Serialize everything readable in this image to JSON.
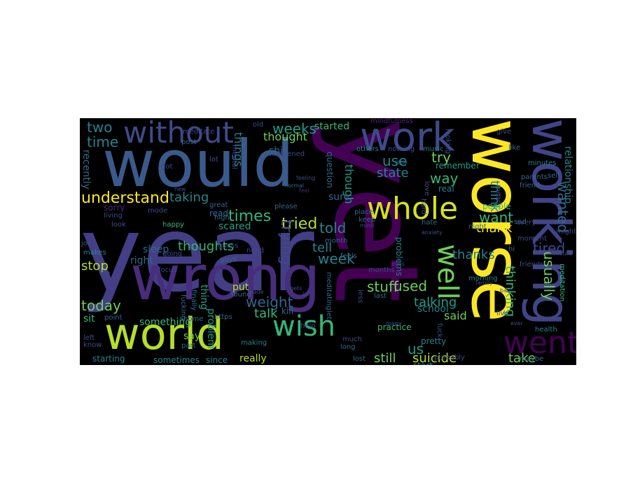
{
  "word_cloud": {
    "background": "#000000",
    "palette": [
      "#440154",
      "#482878",
      "#3e4a89",
      "#31688e",
      "#26828e",
      "#1f9e89",
      "#35b779",
      "#6ece58",
      "#b5de2b",
      "#fde725"
    ],
    "words": [
      {
        "text": "year",
        "color": "#433e85"
      },
      {
        "text": "yet",
        "color": "#440154"
      },
      {
        "text": "would",
        "color": "#3b5a8c"
      },
      {
        "text": "worse",
        "color": "#fde725"
      },
      {
        "text": "wrong",
        "color": "#472d7b"
      },
      {
        "text": "working",
        "color": "#414487"
      },
      {
        "text": "world",
        "color": "#b5de2b"
      },
      {
        "text": "work",
        "color": "#3e4a89"
      },
      {
        "text": "without",
        "color": "#3e4a89"
      },
      {
        "text": "whole",
        "color": "#d8e219"
      },
      {
        "text": "went",
        "color": "#440154"
      },
      {
        "text": "wish",
        "color": "#35b779"
      },
      {
        "text": "well",
        "color": "#6ece58"
      },
      {
        "text": "two",
        "color": "#26828e"
      },
      {
        "text": "time",
        "color": "#26828e"
      },
      {
        "text": "weeks",
        "color": "#1f9e89"
      },
      {
        "text": "thought",
        "color": "#6ece58"
      },
      {
        "text": "understand",
        "color": "#fde725"
      },
      {
        "text": "taking",
        "color": "#26828e"
      },
      {
        "text": "times",
        "color": "#35b779"
      },
      {
        "text": "tried",
        "color": "#b5de2b"
      },
      {
        "text": "trying",
        "color": "#3e4a89"
      },
      {
        "text": "told",
        "color": "#26828e"
      },
      {
        "text": "tell",
        "color": "#26828e"
      },
      {
        "text": "thoughts",
        "color": "#35b779"
      },
      {
        "text": "stop",
        "color": "#b5de2b"
      },
      {
        "text": "today",
        "color": "#6ece58"
      },
      {
        "text": "weight",
        "color": "#31688e"
      },
      {
        "text": "talk",
        "color": "#35b779"
      },
      {
        "text": "week",
        "color": "#26828e"
      },
      {
        "text": "stuff",
        "color": "#6ece58"
      },
      {
        "text": "used",
        "color": "#6ece58"
      },
      {
        "text": "us",
        "color": "#1f9e89"
      },
      {
        "text": "still",
        "color": "#6ece58"
      },
      {
        "text": "suicide",
        "color": "#b5de2b"
      },
      {
        "text": "take",
        "color": "#6ece58"
      },
      {
        "text": "try",
        "color": "#6ece58"
      },
      {
        "text": "use",
        "color": "#26828e"
      },
      {
        "text": "state",
        "color": "#26828e"
      },
      {
        "text": "way",
        "color": "#35b779"
      },
      {
        "text": "want",
        "color": "#35b779"
      },
      {
        "text": "thank",
        "color": "#fde725"
      },
      {
        "text": "thanks",
        "color": "#26828e"
      },
      {
        "text": "talking",
        "color": "#1f9e89"
      },
      {
        "text": "said",
        "color": "#6ece58"
      },
      {
        "text": "school",
        "color": "#26828e"
      },
      {
        "text": "usually",
        "color": "#6ece58"
      },
      {
        "text": "thinking",
        "color": "#35b779"
      },
      {
        "text": "think",
        "color": "#26828e"
      },
      {
        "text": "wanted",
        "color": "#31688e"
      },
      {
        "text": "tired",
        "color": "#3e4a89"
      },
      {
        "text": "relationship",
        "color": "#26828e"
      },
      {
        "text": "things",
        "color": "#26828e"
      },
      {
        "text": "though",
        "color": "#1f9e89"
      },
      {
        "text": "started",
        "color": "#35b779"
      },
      {
        "text": "something",
        "color": "#35b779"
      },
      {
        "text": "sometimes",
        "color": "#26828e"
      },
      {
        "text": "since",
        "color": "#26828e"
      },
      {
        "text": "really",
        "color": "#b5de2b"
      },
      {
        "text": "starting",
        "color": "#26828e"
      },
      {
        "text": "sit",
        "color": "#35b779"
      },
      {
        "text": "right",
        "color": "#31688e"
      },
      {
        "text": "sleep",
        "color": "#31688e"
      },
      {
        "text": "scared",
        "color": "#1f9e89"
      },
      {
        "text": "read",
        "color": "#31688e"
      },
      {
        "text": "sure",
        "color": "#31688e"
      },
      {
        "text": "thing",
        "color": "#1f9e89"
      },
      {
        "text": "problem",
        "color": "#1f9e89"
      },
      {
        "text": "put",
        "color": "#b5de2b"
      },
      {
        "text": "say",
        "color": "#6ece58"
      },
      {
        "text": "problems",
        "color": "#26828e"
      },
      {
        "text": "pretty",
        "color": "#26828e"
      },
      {
        "text": "start",
        "color": "#26828e"
      },
      {
        "text": "real",
        "color": "#26828e"
      },
      {
        "text": "remember",
        "color": "#1f9e89"
      },
      {
        "text": "practice",
        "color": "#35b779"
      },
      {
        "text": "recently",
        "color": "#31688e"
      },
      {
        "text": "shit",
        "color": "#31688e"
      },
      {
        "text": "question",
        "color": "#31688e"
      },
      {
        "text": "sorry",
        "color": "#482878"
      },
      {
        "text": "mindfulness",
        "color": "#482878"
      },
      {
        "text": "people",
        "color": "#35b779"
      },
      {
        "text": "morning",
        "color": "#26828e"
      },
      {
        "text": "minutes",
        "color": "#26828e"
      },
      {
        "text": "parents",
        "color": "#31688e"
      },
      {
        "text": "maybe",
        "color": "#31688e"
      },
      {
        "text": "health",
        "color": "#26828e"
      },
      {
        "text": "meditation",
        "color": "#35b779"
      },
      {
        "text": "probably",
        "color": "#3e4a89"
      },
      {
        "text": "lost",
        "color": "#31688e"
      },
      {
        "text": "last",
        "color": "#31688e"
      },
      {
        "text": "kill",
        "color": "#31688e"
      },
      {
        "text": "found",
        "color": "#31688e"
      },
      {
        "text": "happy",
        "color": "#35b779"
      },
      {
        "text": "finally",
        "color": "#31688e"
      },
      {
        "text": "fucking",
        "color": "#31688e"
      },
      {
        "text": "feel",
        "color": "#482878"
      },
      {
        "text": "please",
        "color": "#31688e"
      },
      {
        "text": "place",
        "color": "#31688e"
      },
      {
        "text": "point",
        "color": "#31688e"
      },
      {
        "text": "part",
        "color": "#31688e"
      },
      {
        "text": "making",
        "color": "#26828e"
      },
      {
        "text": "makes",
        "color": "#26828e"
      },
      {
        "text": "post",
        "color": "#31688e"
      },
      {
        "text": "others",
        "color": "#26828e"
      },
      {
        "text": "nothing",
        "color": "#3e4a89"
      },
      {
        "text": "music",
        "color": "#26828e"
      },
      {
        "text": "little",
        "color": "#31688e"
      },
      {
        "text": "like",
        "color": "#31688e"
      },
      {
        "text": "friend",
        "color": "#31688e"
      },
      {
        "text": "sad",
        "color": "#31688e"
      },
      {
        "text": "self",
        "color": "#31688e"
      },
      {
        "text": "night",
        "color": "#31688e"
      },
      {
        "text": "mental",
        "color": "#3e4a89"
      },
      {
        "text": "high",
        "color": "#31688e"
      },
      {
        "text": "month",
        "color": "#31688e"
      },
      {
        "text": "keep",
        "color": "#31688e"
      },
      {
        "text": "hate",
        "color": "#31688e"
      },
      {
        "text": "meditating",
        "color": "#31688e"
      },
      {
        "text": "long",
        "color": "#31688e"
      },
      {
        "text": "https",
        "color": "#31688e"
      },
      {
        "text": "hi",
        "color": "#31688e"
      },
      {
        "text": "know",
        "color": "#3e4a89"
      },
      {
        "text": "left",
        "color": "#3e4a89"
      },
      {
        "text": "living",
        "color": "#3e4a89"
      },
      {
        "text": "meditate",
        "color": "#3e4a89"
      },
      {
        "text": "life",
        "color": "#3e4a89"
      },
      {
        "text": "look",
        "color": "#3e4a89"
      },
      {
        "text": "lot",
        "color": "#3e4a89"
      },
      {
        "text": "got",
        "color": "#3e4a89"
      },
      {
        "text": "old",
        "color": "#3e4a89"
      },
      {
        "text": "feeling",
        "color": "#3e4a89"
      },
      {
        "text": "much",
        "color": "#3e4a89"
      },
      {
        "text": "feels",
        "color": "#31688e"
      },
      {
        "text": "need",
        "color": "#3e4a89"
      },
      {
        "text": "home",
        "color": "#31688e"
      },
      {
        "text": "guys",
        "color": "#31688e"
      },
      {
        "text": "hard",
        "color": "#3e4a89"
      },
      {
        "text": "let",
        "color": "#31688e"
      },
      {
        "text": "happened",
        "color": "#3e4a89"
      },
      {
        "text": "family",
        "color": "#3e4a89"
      },
      {
        "text": "job",
        "color": "#3e4a89"
      },
      {
        "text": "hours",
        "color": "#3e4a89"
      },
      {
        "text": "mode",
        "color": "#3e4a89"
      },
      {
        "text": "great",
        "color": "#31688e"
      },
      {
        "text": "normal",
        "color": "#31688e"
      },
      {
        "text": "help",
        "color": "#3e4a89"
      },
      {
        "text": "fuck",
        "color": "#3e4a89"
      },
      {
        "text": "live",
        "color": "#3e4a89"
      },
      {
        "text": "focus",
        "color": "#3e4a89"
      },
      {
        "text": "friends",
        "color": "#3e4a89"
      },
      {
        "text": "moment",
        "color": "#3e4a89"
      },
      {
        "text": "less",
        "color": "#3e4a89"
      },
      {
        "text": "might",
        "color": "#3e4a89"
      },
      {
        "text": "love",
        "color": "#3e4a89"
      },
      {
        "text": "every",
        "color": "#3e4a89"
      },
      {
        "text": "guess",
        "color": "#3e4a89"
      },
      {
        "text": "looking",
        "color": "#3e4a89"
      },
      {
        "text": "going",
        "color": "#3e4a89"
      },
      {
        "text": "ever",
        "color": "#3e4a89"
      },
      {
        "text": "mind",
        "color": "#3e4a89"
      },
      {
        "text": "many",
        "color": "#3e4a89"
      },
      {
        "text": "give",
        "color": "#3e4a89"
      },
      {
        "text": "made",
        "color": "#3e4a89"
      },
      {
        "text": "new",
        "color": "#3e4a89"
      },
      {
        "text": "months",
        "color": "#3e4a89"
      },
      {
        "text": "gets",
        "color": "#3e4a89"
      },
      {
        "text": "mean",
        "color": "#3e4a89"
      },
      {
        "text": "lol",
        "color": "#3e4a89"
      },
      {
        "text": "anxiety",
        "color": "#3e4a89"
      },
      {
        "text": "bad",
        "color": "#3e4a89"
      },
      {
        "text": "eyes",
        "color": "#3e4a89"
      }
    ]
  }
}
